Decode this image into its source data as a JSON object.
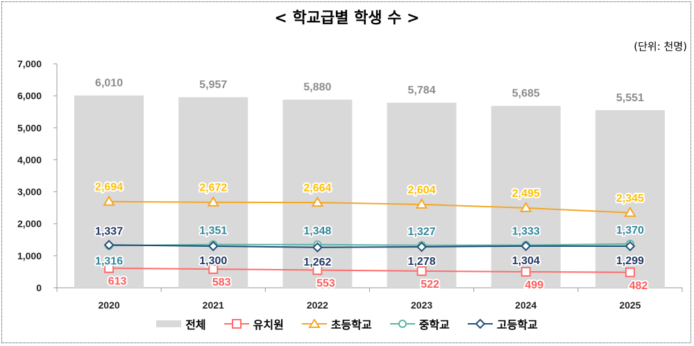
{
  "title": "< 학교급별 학생 수 >",
  "unit": "(단위: 천명)",
  "chart_data": {
    "type": "bar+line",
    "title": "< 학교급별 학생 수 >",
    "unit_label": "(단위: 천명)",
    "categories": [
      "2020",
      "2021",
      "2022",
      "2023",
      "2024",
      "2025"
    ],
    "ylim": [
      0,
      7000
    ],
    "yticks": [
      0,
      1000,
      2000,
      3000,
      4000,
      5000,
      6000,
      7000
    ],
    "ytick_labels": [
      "0",
      "1,000",
      "2,000",
      "3,000",
      "4,000",
      "5,000",
      "6,000",
      "7,000"
    ],
    "grid": false,
    "legend_position": "bottom",
    "series": [
      {
        "name": "전체",
        "type": "bar",
        "color": "#d9d9d9",
        "label_color": "#8c8c8c",
        "values": [
          6010,
          5957,
          5880,
          5784,
          5685,
          5551
        ],
        "labels": [
          "6,010",
          "5,957",
          "5,880",
          "5,784",
          "5,685",
          "5,551"
        ]
      },
      {
        "name": "유치원",
        "type": "line",
        "marker": "square",
        "color": "#ff6b6b",
        "label_color": "#ff5a5a",
        "values": [
          613,
          583,
          553,
          522,
          499,
          482
        ],
        "labels": [
          "613",
          "583",
          "553",
          "522",
          "499",
          "482"
        ]
      },
      {
        "name": "초등학교",
        "type": "line",
        "marker": "triangle",
        "color": "#f5a623",
        "label_color": "#ffc000",
        "values": [
          2694,
          2672,
          2664,
          2604,
          2495,
          2345
        ],
        "labels": [
          "2,694",
          "2,672",
          "2,664",
          "2,604",
          "2,495",
          "2,345"
        ]
      },
      {
        "name": "중학교",
        "type": "line",
        "marker": "circle",
        "color": "#5ab4a4",
        "label_color": "#31869b",
        "values": [
          1316,
          1351,
          1348,
          1327,
          1333,
          1370
        ],
        "labels": [
          "1,316",
          "1,351",
          "1,348",
          "1,327",
          "1,333",
          "1,370"
        ]
      },
      {
        "name": "고등학교",
        "type": "line",
        "marker": "diamond",
        "color": "#1f4e79",
        "label_color": "#1f3864",
        "values": [
          1337,
          1300,
          1262,
          1278,
          1304,
          1299
        ],
        "labels": [
          "1,337",
          "1,300",
          "1,262",
          "1,278",
          "1,304",
          "1,299"
        ]
      }
    ]
  }
}
